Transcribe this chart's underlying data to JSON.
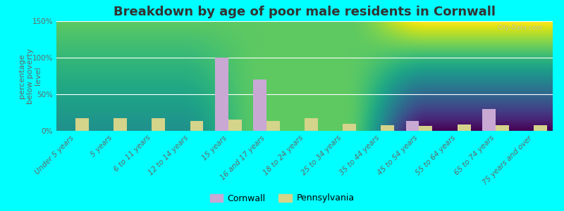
{
  "title": "Breakdown by age of poor male residents in Cornwall",
  "ylabel": "percentage\nbelow poverty\nlevel",
  "categories": [
    "Under 5 years",
    "5 years",
    "6 to 11 years",
    "12 to 14 years",
    "15 years",
    "16 and 17 years",
    "18 to 24 years",
    "25 to 34 years",
    "35 to 44 years",
    "45 to 54 years",
    "55 to 64 years",
    "65 to 74 years",
    "75 years and over"
  ],
  "cornwall_values": [
    0,
    0,
    0,
    0,
    100,
    70,
    0,
    0,
    0,
    13,
    0,
    30,
    0
  ],
  "pennsylvania_values": [
    17,
    17,
    17,
    13,
    15,
    13,
    17,
    10,
    8,
    7,
    9,
    8,
    8
  ],
  "cornwall_color": "#c9a8d4",
  "pennsylvania_color": "#d4d48a",
  "bg_color": "#00ffff",
  "plot_bg_top": "#ececf4",
  "plot_bg_bottom": "#e4ecd4",
  "ylim": [
    0,
    150
  ],
  "yticks": [
    0,
    50,
    100,
    150
  ],
  "ytick_labels": [
    "0%",
    "50%",
    "100%",
    "150%"
  ],
  "bar_width": 0.35,
  "title_fontsize": 13,
  "axis_label_fontsize": 8,
  "tick_fontsize": 7.5,
  "legend_labels": [
    "Cornwall",
    "Pennsylvania"
  ],
  "watermark": "City-Data.com"
}
